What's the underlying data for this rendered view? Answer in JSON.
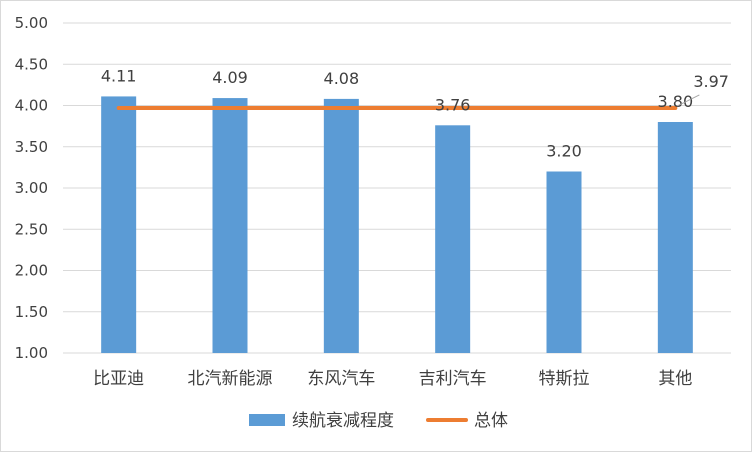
{
  "chart_data": {
    "type": "bar",
    "categories": [
      "比亚迪",
      "北汽新能源",
      "东风汽车",
      "吉利汽车",
      "特斯拉",
      "其他"
    ],
    "series": [
      {
        "name": "续航衰减程度",
        "type": "bar",
        "values": [
          4.11,
          4.09,
          4.08,
          3.76,
          3.2,
          3.8
        ],
        "color": "#5b9bd5"
      },
      {
        "name": "总体",
        "type": "line",
        "values": [
          3.97,
          3.97,
          3.97,
          3.97,
          3.97,
          3.97
        ],
        "color": "#ed7d31"
      }
    ],
    "data_labels": [
      "4.11",
      "4.09",
      "4.08",
      "3.76",
      "3.20",
      "3.80"
    ],
    "line_label": "3.97",
    "y_ticks": [
      "1.00",
      "1.50",
      "2.00",
      "2.50",
      "3.00",
      "3.50",
      "4.00",
      "4.50",
      "5.00"
    ],
    "ylim": [
      1.0,
      5.0
    ],
    "title": "",
    "xlabel": "",
    "ylabel": "",
    "grid": true,
    "legend_position": "bottom",
    "colors": {
      "gridline": "#d9d9d9",
      "text": "#404040"
    }
  }
}
